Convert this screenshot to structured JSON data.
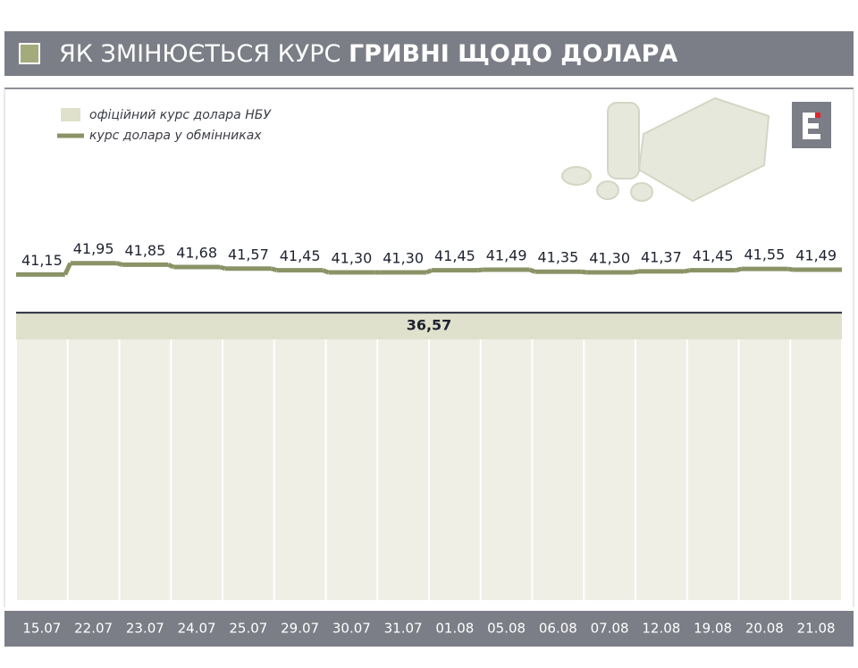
{
  "chart_data": {
    "type": "step",
    "title": "ЯК ЗМІНЮЄТЬСЯ КУРС",
    "title_bold": "ГРИВНІ ЩОДО ДОЛАРА",
    "categories": [
      "15.07",
      "22.07",
      "23.07",
      "24.07",
      "25.07",
      "29.07",
      "30.07",
      "31.07",
      "01.08",
      "05.08",
      "06.08",
      "07.08",
      "12.08",
      "19.08",
      "20.08",
      "21.08"
    ],
    "series": [
      {
        "name": "офіційний курс долара НБУ",
        "color": "#dfe1cc",
        "values": [
          36.57,
          36.57,
          36.57,
          36.57,
          36.57,
          36.57,
          36.57,
          36.57,
          36.57,
          36.57,
          36.57,
          36.57,
          36.57,
          36.57,
          36.57,
          36.57
        ],
        "value_label": "36,57"
      },
      {
        "name": "курс долара у обмінниках",
        "color": "#8a9366",
        "values": [
          41.15,
          41.95,
          41.85,
          41.68,
          41.57,
          41.45,
          41.3,
          41.3,
          41.45,
          41.49,
          41.35,
          41.3,
          41.37,
          41.45,
          41.55,
          41.49
        ],
        "value_labels": [
          "41,15",
          "41,95",
          "41,85",
          "41,68",
          "41,57",
          "41,45",
          "41,30",
          "41,30",
          "41,45",
          "41,49",
          "41,35",
          "41,30",
          "41,37",
          "41,45",
          "41,55",
          "41,49"
        ]
      }
    ],
    "ylim": [
      35,
      42.5
    ]
  }
}
